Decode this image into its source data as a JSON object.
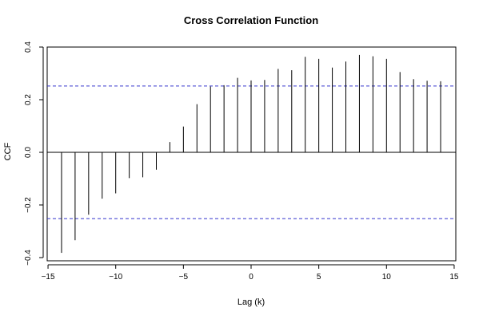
{
  "chart_data": {
    "type": "bar",
    "title": "Cross Correlation Function",
    "xlabel": "Lag (k)",
    "ylabel": "CCF",
    "xlim": [
      -15,
      15
    ],
    "ylim": [
      -0.4,
      0.4
    ],
    "x_ticks": [
      "−15",
      "−10",
      "−5",
      "0",
      "5",
      "10",
      "15"
    ],
    "x_tick_values": [
      -15,
      -10,
      -5,
      0,
      5,
      10,
      15
    ],
    "y_ticks": [
      "−0.4",
      "−0.2",
      "0.0",
      "0.2",
      "0.4"
    ],
    "y_tick_values": [
      -0.4,
      -0.2,
      0.0,
      0.2,
      0.4
    ],
    "confidence_bounds": [
      0.252,
      -0.252
    ],
    "confidence_color": "#3333cc",
    "lags": [
      -14,
      -13,
      -12,
      -11,
      -10,
      -9,
      -8,
      -7,
      -6,
      -5,
      -4,
      -3,
      -2,
      -1,
      0,
      1,
      2,
      3,
      4,
      5,
      6,
      7,
      8,
      9,
      10,
      11,
      12,
      13,
      14
    ],
    "values": [
      -0.382,
      -0.334,
      -0.237,
      -0.176,
      -0.156,
      -0.098,
      -0.095,
      -0.066,
      0.039,
      0.098,
      0.183,
      0.25,
      0.255,
      0.283,
      0.273,
      0.275,
      0.317,
      0.312,
      0.363,
      0.355,
      0.322,
      0.345,
      0.37,
      0.365,
      0.355,
      0.305,
      0.278,
      0.272,
      0.27
    ]
  }
}
